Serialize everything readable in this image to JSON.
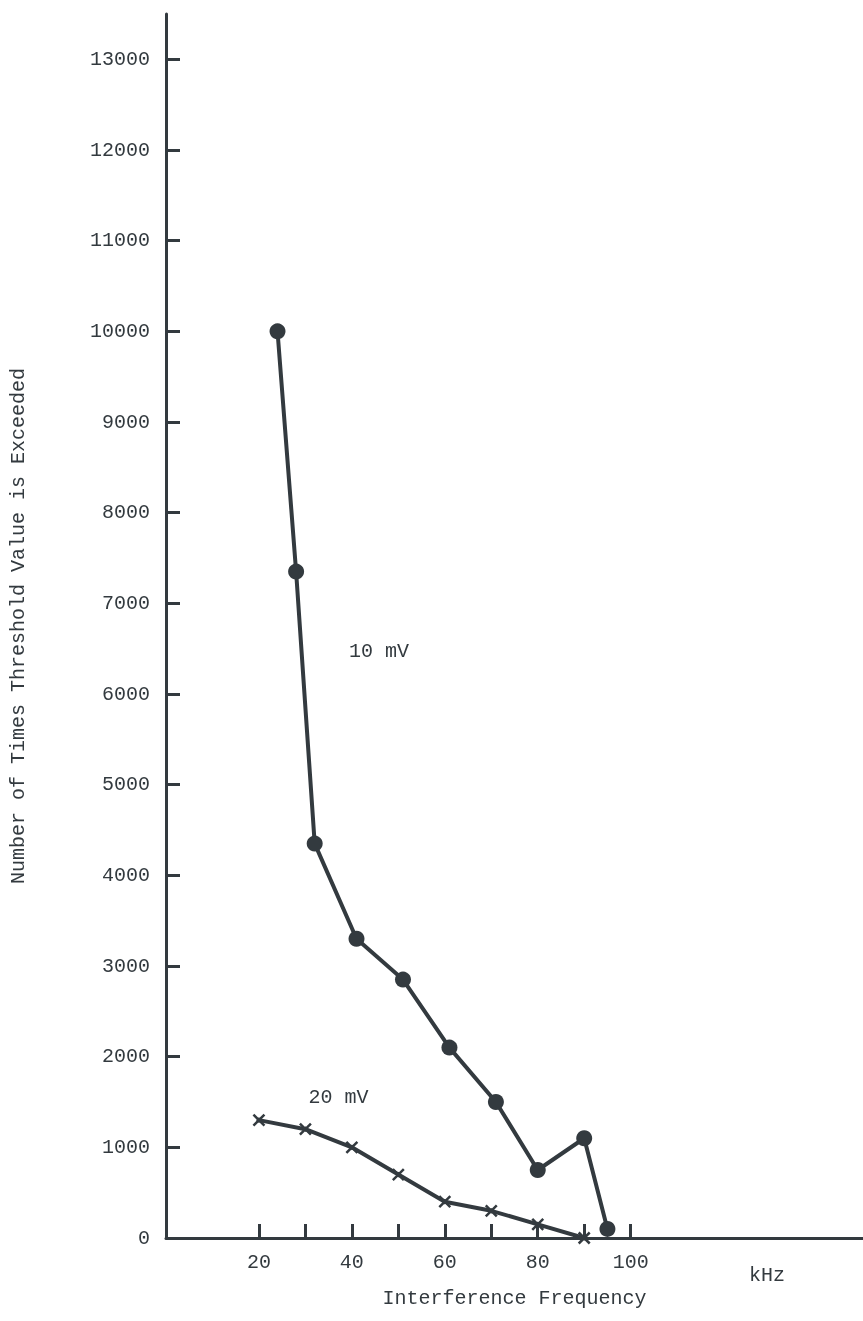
{
  "chart_data": {
    "type": "line",
    "xlabel": "Interference Frequency",
    "ylabel": "Number of Times Threshold Value is Exceeded",
    "annotations": [
      "kHz"
    ],
    "xlim": [
      0,
      150
    ],
    "xticks": [
      20,
      {
        "value": 30,
        "label": null
      },
      40,
      {
        "value": 50,
        "label": null
      },
      60,
      {
        "value": 70,
        "label": null
      },
      80,
      {
        "value": 90,
        "label": null
      },
      100
    ],
    "ylim": [
      0,
      13500
    ],
    "yticks": [
      0,
      1000,
      2000,
      3000,
      4000,
      5000,
      6000,
      7000,
      8000,
      9000,
      10000,
      11000,
      12000,
      13000
    ],
    "grid": false,
    "legend": false,
    "line_style": "solid",
    "series": [
      {
        "name": "10 mV",
        "color": "#333a3f",
        "marker": "circle",
        "x": [
          24,
          28,
          32,
          41,
          51,
          61,
          71,
          80,
          90,
          95
        ],
        "values": [
          10000,
          7350,
          4350,
          3300,
          2850,
          2100,
          1500,
          750,
          1100,
          100
        ]
      },
      {
        "name": "20 mV",
        "color": "#333a3f",
        "marker": "cross",
        "x": [
          20,
          30,
          40,
          50,
          60,
          70,
          80,
          90
        ],
        "values": [
          1300,
          1200,
          1000,
          700,
          400,
          300,
          150,
          0
        ]
      }
    ]
  }
}
